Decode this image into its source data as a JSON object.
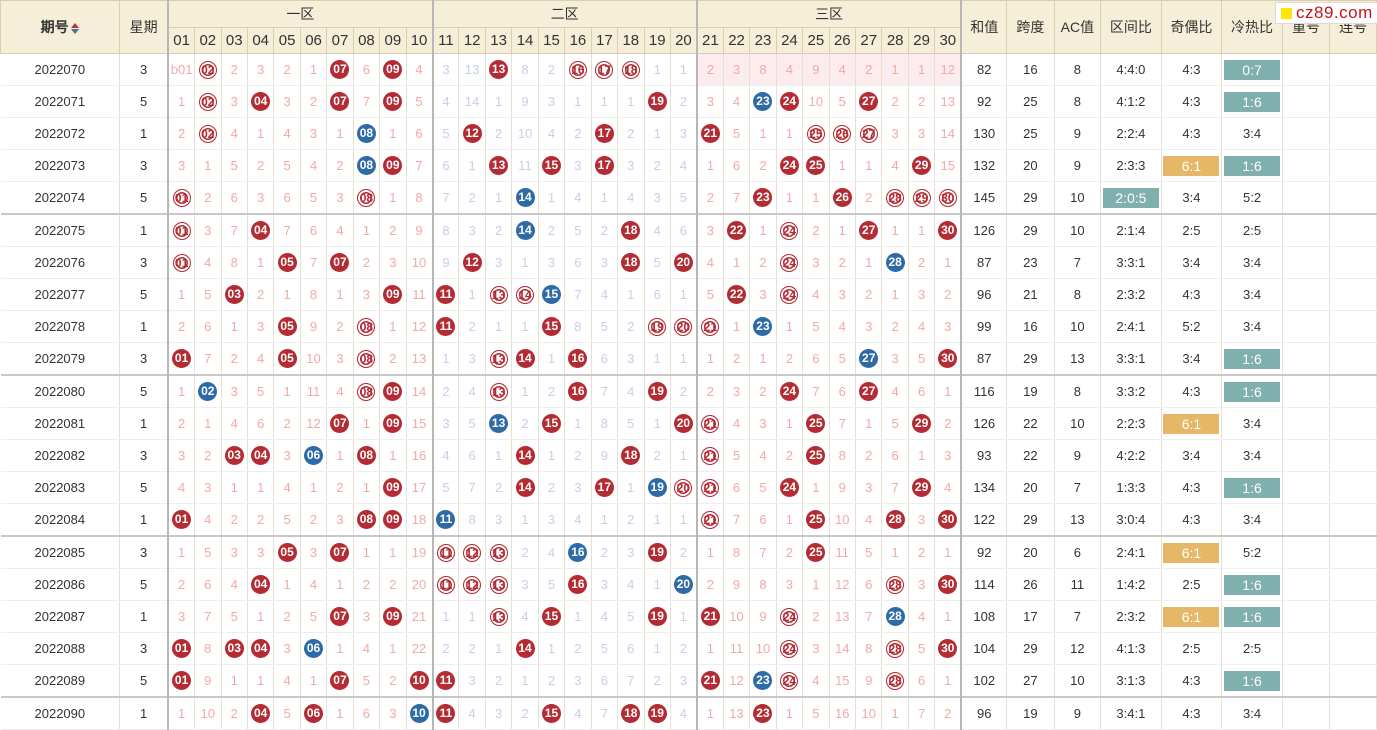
{
  "watermark": {
    "text": "cz89.com"
  },
  "headers": {
    "issue": "期号",
    "weekday": "星期",
    "zone1": "一区",
    "zone2": "二区",
    "zone3": "三区",
    "sum": "和值",
    "span": "跨度",
    "ac": "AC值",
    "zone_ratio": "区间比",
    "odd_even": "奇偶比",
    "hot_cold": "冷热比",
    "repeat": "重号",
    "consecutive": "连号",
    "numbers": [
      "01",
      "02",
      "03",
      "04",
      "05",
      "06",
      "07",
      "08",
      "09",
      "10",
      "11",
      "12",
      "13",
      "14",
      "15",
      "16",
      "17",
      "18",
      "19",
      "20",
      "21",
      "22",
      "23",
      "24",
      "25",
      "26",
      "27",
      "28",
      "29",
      "30"
    ]
  },
  "legend_colors": {
    "hit_red": "#b52b33",
    "hit_blue": "#2e6ba6",
    "teal": "#7fb0ad",
    "orange": "#e6b766"
  },
  "rows": [
    {
      "issue": "2022070",
      "weekday": "3",
      "cells": [
        "b01",
        "r02",
        "2",
        "3",
        "2",
        "1",
        "R07",
        "6",
        "R09",
        "4",
        "3",
        "13",
        "R13",
        "8",
        "2",
        "r16",
        "r17",
        "r18",
        "1",
        "1",
        "2",
        "3",
        "8",
        "4",
        "9",
        "4",
        "2",
        "1",
        "1",
        "12"
      ],
      "sum": "82",
      "span": "16",
      "ac": "8",
      "zone_ratio": "4:4:0",
      "odd_even": "4:3",
      "hot_cold": "0:7",
      "hl_zone": "",
      "hl_odd": "",
      "hl_hot": "teal"
    },
    {
      "issue": "2022071",
      "weekday": "5",
      "cells": [
        "1",
        "r02",
        "3",
        "R04",
        "3",
        "2",
        "R07",
        "7",
        "R09",
        "5",
        "4",
        "14",
        "1",
        "9",
        "3",
        "1",
        "1",
        "1",
        "R19",
        "2",
        "3",
        "4",
        "B23",
        "R24",
        "10",
        "5",
        "R27",
        "2",
        "2",
        "13"
      ],
      "sum": "92",
      "span": "25",
      "ac": "8",
      "zone_ratio": "4:1:2",
      "odd_even": "4:3",
      "hot_cold": "1:6",
      "hl_zone": "",
      "hl_odd": "",
      "hl_hot": "teal"
    },
    {
      "issue": "2022072",
      "weekday": "1",
      "cells": [
        "2",
        "r02",
        "4",
        "1",
        "4",
        "3",
        "1",
        "B08",
        "1",
        "6",
        "5",
        "R12",
        "2",
        "10",
        "4",
        "2",
        "R17",
        "2",
        "1",
        "3",
        "R21",
        "5",
        "1",
        "1",
        "r25",
        "r26",
        "r27",
        "3",
        "3",
        "14"
      ],
      "sum": "130",
      "span": "25",
      "ac": "9",
      "zone_ratio": "2:2:4",
      "odd_even": "4:3",
      "hot_cold": "3:4",
      "hl_zone": "",
      "hl_odd": "",
      "hl_hot": ""
    },
    {
      "issue": "2022073",
      "weekday": "3",
      "cells": [
        "3",
        "1",
        "5",
        "2",
        "5",
        "4",
        "2",
        "B08",
        "R09",
        "7",
        "6",
        "1",
        "R13",
        "11",
        "R15",
        "3",
        "R17",
        "3",
        "2",
        "4",
        "1",
        "6",
        "2",
        "R24",
        "R25",
        "1",
        "1",
        "4",
        "R29",
        "15"
      ],
      "sum": "132",
      "span": "20",
      "ac": "9",
      "zone_ratio": "2:3:3",
      "odd_even": "6:1",
      "hot_cold": "1:6",
      "hl_zone": "",
      "hl_odd": "orange",
      "hl_hot": "teal"
    },
    {
      "issue": "2022074",
      "weekday": "5",
      "cells": [
        "r01",
        "2",
        "6",
        "3",
        "6",
        "5",
        "3",
        "r08",
        "1",
        "8",
        "7",
        "2",
        "1",
        "B14",
        "1",
        "4",
        "1",
        "4",
        "3",
        "5",
        "2",
        "7",
        "R23",
        "1",
        "1",
        "R26",
        "2",
        "r28",
        "r29",
        "r30"
      ],
      "sum": "145",
      "span": "29",
      "ac": "10",
      "zone_ratio": "2:0:5",
      "odd_even": "3:4",
      "hot_cold": "5:2",
      "hl_zone": "teal",
      "hl_odd": "",
      "hl_hot": ""
    },
    {
      "issue": "2022075",
      "weekday": "1",
      "cells": [
        "r01",
        "3",
        "7",
        "R04",
        "7",
        "6",
        "4",
        "1",
        "2",
        "9",
        "8",
        "3",
        "2",
        "B14",
        "2",
        "5",
        "2",
        "R18",
        "4",
        "6",
        "3",
        "R22",
        "1",
        "r24",
        "2",
        "1",
        "R27",
        "1",
        "1",
        "R30"
      ],
      "sum": "126",
      "span": "29",
      "ac": "10",
      "zone_ratio": "2:1:4",
      "odd_even": "2:5",
      "hot_cold": "2:5",
      "hl_zone": "",
      "hl_odd": "",
      "hl_hot": ""
    },
    {
      "issue": "2022076",
      "weekday": "3",
      "cells": [
        "r01",
        "4",
        "8",
        "1",
        "R05",
        "7",
        "R07",
        "2",
        "3",
        "10",
        "9",
        "R12",
        "3",
        "1",
        "3",
        "6",
        "3",
        "R18",
        "5",
        "R20",
        "4",
        "1",
        "2",
        "r24",
        "3",
        "2",
        "1",
        "B28",
        "2",
        "1"
      ],
      "sum": "87",
      "span": "23",
      "ac": "7",
      "zone_ratio": "3:3:1",
      "odd_even": "3:4",
      "hot_cold": "3:4",
      "hl_zone": "",
      "hl_odd": "",
      "hl_hot": ""
    },
    {
      "issue": "2022077",
      "weekday": "5",
      "cells": [
        "1",
        "5",
        "R03",
        "2",
        "1",
        "8",
        "1",
        "3",
        "R09",
        "11",
        "R11",
        "1",
        "r13",
        "r14",
        "B15",
        "7",
        "4",
        "1",
        "6",
        "1",
        "5",
        "R22",
        "3",
        "r24",
        "4",
        "3",
        "2",
        "1",
        "3",
        "2"
      ],
      "sum": "96",
      "span": "21",
      "ac": "8",
      "zone_ratio": "2:3:2",
      "odd_even": "4:3",
      "hot_cold": "3:4",
      "hl_zone": "",
      "hl_odd": "",
      "hl_hot": ""
    },
    {
      "issue": "2022078",
      "weekday": "1",
      "cells": [
        "2",
        "6",
        "1",
        "3",
        "R05",
        "9",
        "2",
        "r08",
        "1",
        "12",
        "R11",
        "2",
        "1",
        "1",
        "R15",
        "8",
        "5",
        "2",
        "r19",
        "r20",
        "r21",
        "1",
        "B23",
        "1",
        "5",
        "4",
        "3",
        "2",
        "4",
        "3"
      ],
      "sum": "99",
      "span": "16",
      "ac": "10",
      "zone_ratio": "2:4:1",
      "odd_even": "5:2",
      "hot_cold": "3:4",
      "hl_zone": "",
      "hl_odd": "",
      "hl_hot": ""
    },
    {
      "issue": "2022079",
      "weekday": "3",
      "cells": [
        "R01",
        "7",
        "2",
        "4",
        "R05",
        "10",
        "3",
        "r08",
        "2",
        "13",
        "1",
        "3",
        "r13",
        "R14",
        "1",
        "R16",
        "6",
        "3",
        "1",
        "1",
        "1",
        "2",
        "1",
        "2",
        "6",
        "5",
        "B27",
        "3",
        "5",
        "R30"
      ],
      "sum": "87",
      "span": "29",
      "ac": "13",
      "zone_ratio": "3:3:1",
      "odd_even": "3:4",
      "hot_cold": "1:6",
      "hl_zone": "",
      "hl_odd": "",
      "hl_hot": "teal"
    },
    {
      "issue": "2022080",
      "weekday": "5",
      "cells": [
        "1",
        "B02",
        "3",
        "5",
        "1",
        "11",
        "4",
        "r08",
        "R09",
        "14",
        "2",
        "4",
        "r13",
        "1",
        "2",
        "R16",
        "7",
        "4",
        "R19",
        "2",
        "2",
        "3",
        "2",
        "R24",
        "7",
        "6",
        "R27",
        "4",
        "6",
        "1"
      ],
      "sum": "116",
      "span": "19",
      "ac": "8",
      "zone_ratio": "3:3:2",
      "odd_even": "4:3",
      "hot_cold": "1:6",
      "hl_zone": "",
      "hl_odd": "",
      "hl_hot": "teal"
    },
    {
      "issue": "2022081",
      "weekday": "1",
      "cells": [
        "2",
        "1",
        "4",
        "6",
        "2",
        "12",
        "R07",
        "1",
        "R09",
        "15",
        "3",
        "5",
        "B13",
        "2",
        "R15",
        "1",
        "8",
        "5",
        "1",
        "R20",
        "r21",
        "4",
        "3",
        "1",
        "R25",
        "7",
        "1",
        "5",
        "R29",
        "2"
      ],
      "sum": "126",
      "span": "22",
      "ac": "10",
      "zone_ratio": "2:2:3",
      "odd_even": "6:1",
      "hot_cold": "3:4",
      "hl_zone": "",
      "hl_odd": "orange",
      "hl_hot": ""
    },
    {
      "issue": "2022082",
      "weekday": "3",
      "cells": [
        "3",
        "2",
        "R03",
        "R04",
        "3",
        "B06",
        "1",
        "R08",
        "1",
        "16",
        "4",
        "6",
        "1",
        "R14",
        "1",
        "2",
        "9",
        "R18",
        "2",
        "1",
        "r21",
        "5",
        "4",
        "2",
        "R25",
        "8",
        "2",
        "6",
        "1",
        "3"
      ],
      "sum": "93",
      "span": "22",
      "ac": "9",
      "zone_ratio": "4:2:2",
      "odd_even": "3:4",
      "hot_cold": "3:4",
      "hl_zone": "",
      "hl_odd": "",
      "hl_hot": ""
    },
    {
      "issue": "2022083",
      "weekday": "5",
      "cells": [
        "4",
        "3",
        "1",
        "1",
        "4",
        "1",
        "2",
        "1",
        "R09",
        "17",
        "5",
        "7",
        "2",
        "R14",
        "2",
        "3",
        "R17",
        "1",
        "B19",
        "r20",
        "r21",
        "6",
        "5",
        "R24",
        "1",
        "9",
        "3",
        "7",
        "R29",
        "4"
      ],
      "sum": "134",
      "span": "20",
      "ac": "7",
      "zone_ratio": "1:3:3",
      "odd_even": "4:3",
      "hot_cold": "1:6",
      "hl_zone": "",
      "hl_odd": "",
      "hl_hot": "teal"
    },
    {
      "issue": "2022084",
      "weekday": "1",
      "cells": [
        "R01",
        "4",
        "2",
        "2",
        "5",
        "2",
        "3",
        "R08",
        "R09",
        "18",
        "B11",
        "8",
        "3",
        "1",
        "3",
        "4",
        "1",
        "2",
        "1",
        "1",
        "r21",
        "7",
        "6",
        "1",
        "R25",
        "10",
        "4",
        "R28",
        "3",
        "R30"
      ],
      "sum": "122",
      "span": "29",
      "ac": "13",
      "zone_ratio": "3:0:4",
      "odd_even": "4:3",
      "hot_cold": "3:4",
      "hl_zone": "",
      "hl_odd": "",
      "hl_hot": ""
    },
    {
      "issue": "2022085",
      "weekday": "3",
      "cells": [
        "1",
        "5",
        "3",
        "3",
        "R05",
        "3",
        "R07",
        "1",
        "1",
        "19",
        "r11",
        "r12",
        "r13",
        "2",
        "4",
        "B16",
        "2",
        "3",
        "R19",
        "2",
        "1",
        "8",
        "7",
        "2",
        "R25",
        "11",
        "5",
        "1",
        "2",
        "1"
      ],
      "sum": "92",
      "span": "20",
      "ac": "6",
      "zone_ratio": "2:4:1",
      "odd_even": "6:1",
      "hot_cold": "5:2",
      "hl_zone": "",
      "hl_odd": "orange",
      "hl_hot": ""
    },
    {
      "issue": "2022086",
      "weekday": "5",
      "cells": [
        "2",
        "6",
        "4",
        "R04",
        "1",
        "4",
        "1",
        "2",
        "2",
        "20",
        "r11",
        "r12",
        "r13",
        "3",
        "5",
        "R16",
        "3",
        "4",
        "1",
        "B20",
        "2",
        "9",
        "8",
        "3",
        "1",
        "12",
        "6",
        "r28",
        "3",
        "R30"
      ],
      "sum": "114",
      "span": "26",
      "ac": "11",
      "zone_ratio": "1:4:2",
      "odd_even": "2:5",
      "hot_cold": "1:6",
      "hl_zone": "",
      "hl_odd": "",
      "hl_hot": "teal"
    },
    {
      "issue": "2022087",
      "weekday": "1",
      "cells": [
        "3",
        "7",
        "5",
        "1",
        "2",
        "5",
        "R07",
        "3",
        "R09",
        "21",
        "1",
        "1",
        "r13",
        "4",
        "R15",
        "1",
        "4",
        "5",
        "R19",
        "1",
        "R21",
        "10",
        "9",
        "r24",
        "2",
        "13",
        "7",
        "B28",
        "4",
        "1"
      ],
      "sum": "108",
      "span": "17",
      "ac": "7",
      "zone_ratio": "2:3:2",
      "odd_even": "6:1",
      "hot_cold": "1:6",
      "hl_zone": "",
      "hl_odd": "orange",
      "hl_hot": "teal"
    },
    {
      "issue": "2022088",
      "weekday": "3",
      "cells": [
        "R01",
        "8",
        "R03",
        "R04",
        "3",
        "B06",
        "1",
        "4",
        "1",
        "22",
        "2",
        "2",
        "1",
        "R14",
        "1",
        "2",
        "5",
        "6",
        "1",
        "2",
        "1",
        "11",
        "10",
        "r24",
        "3",
        "14",
        "8",
        "r28",
        "5",
        "R30"
      ],
      "sum": "104",
      "span": "29",
      "ac": "12",
      "zone_ratio": "4:1:3",
      "odd_even": "2:5",
      "hot_cold": "2:5",
      "hl_zone": "",
      "hl_odd": "",
      "hl_hot": ""
    },
    {
      "issue": "2022089",
      "weekday": "5",
      "cells": [
        "R01",
        "9",
        "1",
        "1",
        "4",
        "1",
        "R07",
        "5",
        "2",
        "R10",
        "R11",
        "3",
        "2",
        "1",
        "2",
        "3",
        "6",
        "7",
        "2",
        "3",
        "R21",
        "12",
        "B23",
        "r24",
        "4",
        "15",
        "9",
        "r28",
        "6",
        "1"
      ],
      "sum": "102",
      "span": "27",
      "ac": "10",
      "zone_ratio": "3:1:3",
      "odd_even": "4:3",
      "hot_cold": "1:6",
      "hl_zone": "",
      "hl_odd": "",
      "hl_hot": "teal"
    },
    {
      "issue": "2022090",
      "weekday": "1",
      "cells": [
        "1",
        "10",
        "2",
        "R04",
        "5",
        "R06",
        "1",
        "6",
        "3",
        "B10",
        "R11",
        "4",
        "3",
        "2",
        "R15",
        "4",
        "7",
        "R18",
        "R19",
        "4",
        "1",
        "13",
        "R23",
        "1",
        "5",
        "16",
        "10",
        "1",
        "7",
        "2"
      ],
      "sum": "96",
      "span": "19",
      "ac": "9",
      "zone_ratio": "3:4:1",
      "odd_even": "4:3",
      "hot_cold": "3:4",
      "hl_zone": "",
      "hl_odd": "",
      "hl_hot": ""
    }
  ]
}
